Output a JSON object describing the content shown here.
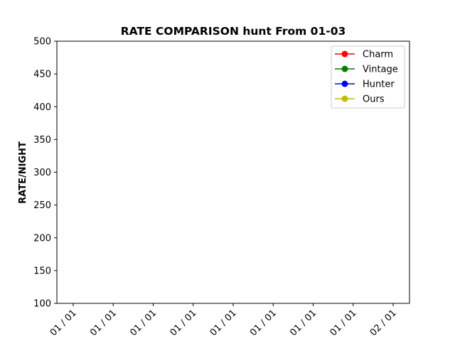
{
  "chart_data": {
    "type": "line",
    "title": "RATE COMPARISON hunt From 01-03",
    "xlabel": "",
    "ylabel": "RATE/NIGHT",
    "ylim": [
      100,
      500
    ],
    "yticks": [
      "100",
      "150",
      "200",
      "250",
      "300",
      "350",
      "400",
      "450",
      "500"
    ],
    "xticks": [
      "01 / 01",
      "01 / 01",
      "01 / 01",
      "01 / 01",
      "01 / 01",
      "01 / 01",
      "01 / 01",
      "01 / 01",
      "02 / 01"
    ],
    "grid": false,
    "legend_position": "top-right",
    "series": [
      {
        "name": "Charm",
        "color": "#ff0000",
        "values": []
      },
      {
        "name": "Vintage",
        "color": "#008000",
        "values": []
      },
      {
        "name": "Hunter",
        "color": "#0000ff",
        "values": []
      },
      {
        "name": "Ours",
        "color": "#bfbf00",
        "values": []
      }
    ]
  }
}
